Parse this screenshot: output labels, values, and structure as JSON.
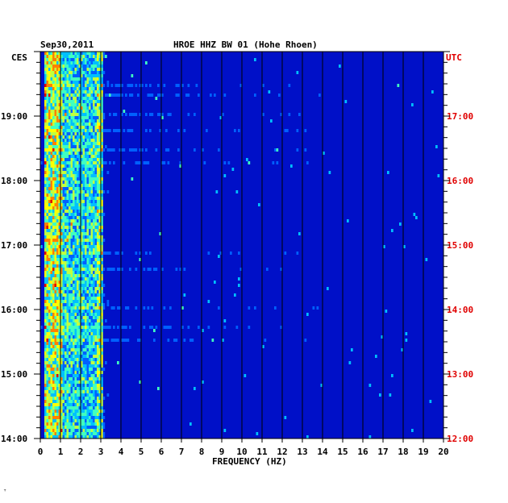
{
  "chart_data": {
    "type": "heatmap",
    "date": "Sep30,2011",
    "title": "HROE HHZ BW 01 (Hohe Rhoen)",
    "xlabel": "FREQUENCY (HZ)",
    "xlim": [
      0,
      20
    ],
    "x_ticks": [
      "0",
      "1",
      "2",
      "3",
      "4",
      "5",
      "6",
      "7",
      "8",
      "9",
      "10",
      "11",
      "12",
      "13",
      "14",
      "15",
      "16",
      "17",
      "18",
      "19",
      "20"
    ],
    "left_axis_label": "CES",
    "right_axis_label": "UTC",
    "left_ticks": [
      "19:00",
      "18:00",
      "17:00",
      "16:00",
      "15:00",
      "14:00"
    ],
    "right_ticks": [
      "17:00",
      "16:00",
      "15:00",
      "14:00",
      "13:00",
      "12:00"
    ],
    "time_range_ces": [
      "14:00",
      "19:55"
    ],
    "colors": {
      "background": "#0010c8",
      "grid": "#000000",
      "utc_label": "#e00000",
      "axis": "#000000"
    },
    "colorscale": [
      "#0010c8",
      "#0060ff",
      "#00c0ff",
      "#40ffc0",
      "#c0ff40",
      "#ffff00",
      "#ff8000",
      "#e00000"
    ],
    "features": [
      {
        "name": "low-frequency energy",
        "freq_hz": [
          0.2,
          1.0
        ],
        "intensity": 0.85
      },
      {
        "name": "broadband 1-3 Hz",
        "freq_hz": [
          1.0,
          2.9
        ],
        "intensity": 0.55
      },
      {
        "name": "3 Hz line",
        "freq_hz": [
          2.8,
          3.0
        ],
        "intensity": 0.75
      }
    ],
    "marker_dot": "ᵀ"
  }
}
